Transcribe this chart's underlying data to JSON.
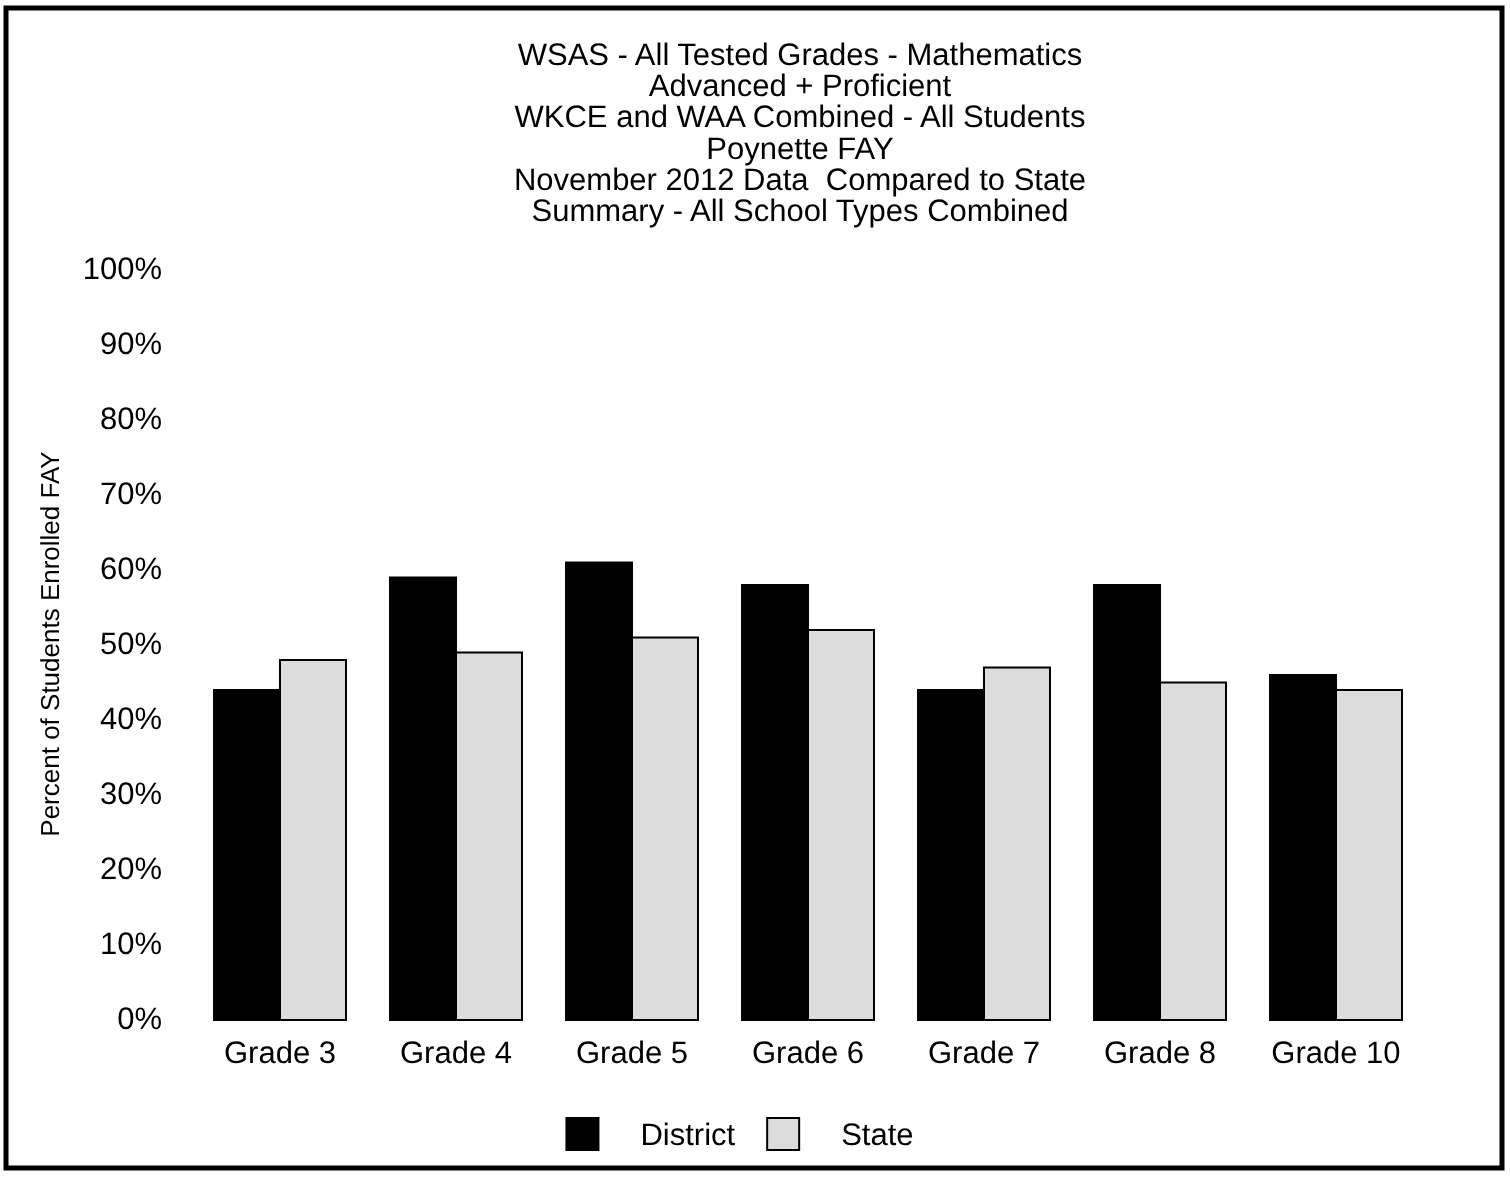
{
  "chart_data": {
    "type": "bar",
    "title": "WSAS - All Tested Grades - Mathematics",
    "subtitle": "Advanced + Proficient\nWKCE and WAA Combined - All Students\nPoynette FAY\nNovember 2012 Data  Compared to State\nSummary - All School Types Combined",
    "ylabel": "Percent of Students Enrolled FAY",
    "categories": [
      "Grade 3",
      "Grade 4",
      "Grade 5",
      "Grade 6",
      "Grade 7",
      "Grade 8",
      "Grade 10"
    ],
    "series": [
      {
        "name": "District",
        "color": "#000000",
        "values": [
          44,
          59,
          61,
          58,
          44,
          58,
          46
        ]
      },
      {
        "name": "State",
        "color": "#dcdcdc",
        "values": [
          48,
          49,
          51,
          52,
          47,
          45,
          44
        ]
      }
    ],
    "ylim": [
      0,
      100
    ],
    "yticks": [
      {
        "value": 0,
        "label": "0%"
      },
      {
        "value": 10,
        "label": "10%"
      },
      {
        "value": 20,
        "label": "20%"
      },
      {
        "value": 30,
        "label": "30%"
      },
      {
        "value": 40,
        "label": "40%"
      },
      {
        "value": 50,
        "label": "50%"
      },
      {
        "value": 60,
        "label": "60%"
      },
      {
        "value": 70,
        "label": "70%"
      },
      {
        "value": 80,
        "label": "80%"
      },
      {
        "value": 90,
        "label": "90%"
      },
      {
        "value": 100,
        "label": "100%"
      }
    ],
    "grid": false,
    "legend": "bottom"
  }
}
